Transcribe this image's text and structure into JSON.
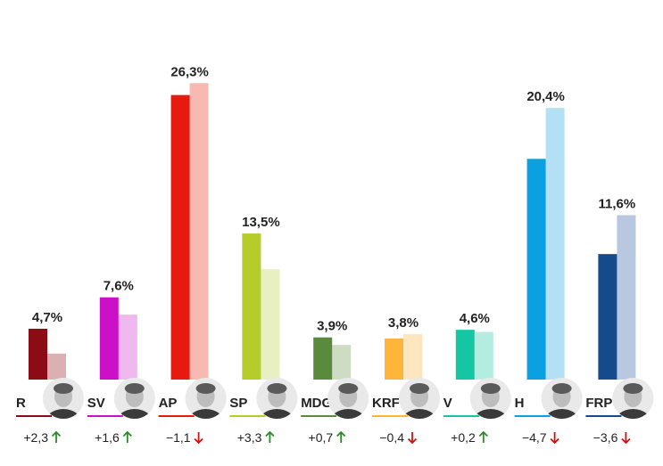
{
  "chart_data": {
    "type": "bar",
    "series": [
      {
        "values": [
          4.7,
          7.6,
          26.3,
          13.5,
          3.9,
          3.8,
          4.6,
          20.4,
          11.6
        ]
      },
      {
        "values": [
          2.4,
          6.0,
          27.4,
          10.2,
          3.2,
          4.2,
          4.4,
          25.1,
          15.2
        ]
      }
    ],
    "ylim": [
      0,
      28
    ],
    "parties": [
      {
        "label": "R",
        "value_label": "4,7%",
        "change": "+2,3",
        "direction": "up",
        "color": "#8b0c14",
        "prev_color": "#dcb0b2"
      },
      {
        "label": "SV",
        "value_label": "7,6%",
        "change": "+1,6",
        "direction": "up",
        "color": "#cc10c8",
        "prev_color": "#efb8ee"
      },
      {
        "label": "AP",
        "value_label": "26,3%",
        "change": "−1,1",
        "direction": "down",
        "color": "#e8190f",
        "prev_color": "#f7b9b2"
      },
      {
        "label": "SP",
        "value_label": "13,5%",
        "change": "+3,3",
        "direction": "up",
        "color": "#b5cc2a",
        "prev_color": "#e8efc0"
      },
      {
        "label": "MDG",
        "value_label": "3,9%",
        "change": "+0,7",
        "direction": "up",
        "color": "#5a8a3c",
        "prev_color": "#cddcc3"
      },
      {
        "label": "KRF",
        "value_label": "3,8%",
        "change": "−0,4",
        "direction": "down",
        "color": "#ffb43a",
        "prev_color": "#ffe6bf"
      },
      {
        "label": "V",
        "value_label": "4,6%",
        "change": "+0,2",
        "direction": "up",
        "color": "#14c6a4",
        "prev_color": "#b3ece0"
      },
      {
        "label": "H",
        "value_label": "20,4%",
        "change": "−4,7",
        "direction": "down",
        "color": "#0aa0e2",
        "prev_color": "#b3e0f5"
      },
      {
        "label": "FRP",
        "value_label": "11,6%",
        "change": "−3,6",
        "direction": "down",
        "color": "#154a8c",
        "prev_color": "#b8c8e0"
      }
    ],
    "colors": {
      "up": "#2a8a2a",
      "down": "#d01010"
    }
  }
}
